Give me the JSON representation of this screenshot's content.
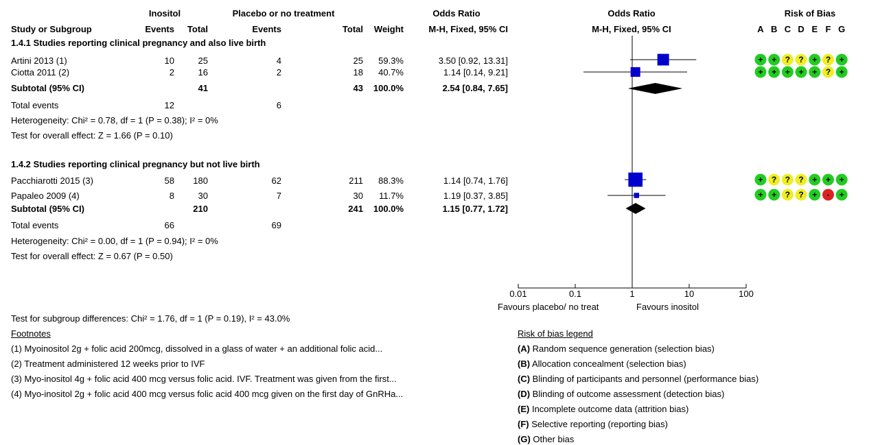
{
  "header": {
    "group1": "Inositol",
    "group2": "Placebo or no treatment",
    "or_top": "Odds Ratio",
    "or_plot_top": "Odds Ratio",
    "rob_top": "Risk of Bias",
    "study_col": "Study or Subgroup",
    "events1": "Events",
    "total1": "Total",
    "events2": "Events",
    "total2": "Total",
    "weight": "Weight",
    "method": "M-H, Fixed, 95% CI",
    "method_plot": "M-H, Fixed, 95% CI",
    "rob_letters": [
      "A",
      "B",
      "C",
      "D",
      "E",
      "F",
      "G"
    ]
  },
  "groups": [
    {
      "title": "1.4.1 Studies reporting clinical pregnancy and also live birth",
      "studies": [
        {
          "name": "Artini 2013 (1)",
          "e1": "10",
          "t1": "25",
          "e2": "4",
          "t2": "25",
          "weight": "59.3%",
          "or_text": "3.50 [0.92, 13.31]",
          "or": 3.5,
          "lo": 0.92,
          "hi": 13.31,
          "w": 59.3,
          "rob": [
            "+",
            "+",
            "?",
            "?",
            "+",
            "?",
            "+"
          ]
        },
        {
          "name": "Ciotta 2011 (2)",
          "e1": "2",
          "t1": "16",
          "e2": "2",
          "t2": "18",
          "weight": "40.7%",
          "or_text": "1.14 [0.14, 9.21]",
          "or": 1.14,
          "lo": 0.14,
          "hi": 9.21,
          "w": 40.7,
          "rob": [
            "+",
            "+",
            "+",
            "+",
            "+",
            "?",
            "+"
          ]
        }
      ],
      "subtotal": {
        "label": "Subtotal (95% CI)",
        "t1": "41",
        "t2": "43",
        "weight": "100.0%",
        "or_text": "2.54 [0.84, 7.65]",
        "or": 2.54,
        "lo": 0.84,
        "hi": 7.65
      },
      "total_events": {
        "label": "Total events",
        "e1": "12",
        "e2": "6"
      },
      "heterogeneity": "Heterogeneity: Chi² = 0.78, df = 1 (P = 0.38); I² = 0%",
      "overall": "Test for overall effect: Z = 1.66 (P = 0.10)"
    },
    {
      "title": "1.4.2 Studies reporting clinical pregnancy but not live birth",
      "studies": [
        {
          "name": "Pacchiarotti 2015 (3)",
          "e1": "58",
          "t1": "180",
          "e2": "62",
          "t2": "211",
          "weight": "88.3%",
          "or_text": "1.14 [0.74, 1.76]",
          "or": 1.14,
          "lo": 0.74,
          "hi": 1.76,
          "w": 88.3,
          "rob": [
            "+",
            "?",
            "?",
            "?",
            "+",
            "+",
            "+"
          ]
        },
        {
          "name": "Papaleo 2009 (4)",
          "e1": "8",
          "t1": "30",
          "e2": "7",
          "t2": "30",
          "weight": "11.7%",
          "or_text": "1.19 [0.37, 3.85]",
          "or": 1.19,
          "lo": 0.37,
          "hi": 3.85,
          "w": 11.7,
          "rob": [
            "+",
            "+",
            "?",
            "?",
            "+",
            "-",
            "+"
          ]
        }
      ],
      "subtotal": {
        "label": "Subtotal (95% CI)",
        "t1": "210",
        "t2": "241",
        "weight": "100.0%",
        "or_text": "1.15 [0.77, 1.72]",
        "or": 1.15,
        "lo": 0.77,
        "hi": 1.72
      },
      "total_events": {
        "label": "Total events",
        "e1": "66",
        "e2": "69"
      },
      "heterogeneity": "Heterogeneity: Chi² = 0.00, df = 1 (P = 0.94); I² = 0%",
      "overall": "Test for overall effect: Z = 0.67 (P = 0.50)"
    }
  ],
  "subgroup_test": "Test for subgroup differences: Chi² = 1.76, df = 1 (P = 0.19), I² = 43.0%",
  "favours_left": "Favours placebo/ no treat",
  "favours_right": "Favours inositol",
  "footnotes_title": "Footnotes",
  "footnotes": [
    "(1) Myoinositol 2g + folic acid 200mcg, dissolved in a glass of water + an additional folic acid...",
    "(2) Treatment administered 12 weeks prior to IVF",
    "(3) Myo-inositol 4g + folic acid 400 mcg versus folic acid. IVF. Treatment was given from the first...",
    "(4) Myo-inositol 2g + folic acid 400 mcg versus folic acid 400 mcg given on the first day of GnRHa..."
  ],
  "rob_legend_title": "Risk of bias legend",
  "rob_legend": [
    {
      "key": "(A)",
      "text": " Random sequence generation (selection bias)"
    },
    {
      "key": "(B)",
      "text": " Allocation concealment (selection bias)"
    },
    {
      "key": "(C)",
      "text": " Blinding of participants and personnel (performance bias)"
    },
    {
      "key": "(D)",
      "text": " Blinding of outcome assessment (detection bias)"
    },
    {
      "key": "(E)",
      "text": " Incomplete outcome data (attrition bias)"
    },
    {
      "key": "(F)",
      "text": " Selective reporting (reporting bias)"
    },
    {
      "key": "(G)",
      "text": " Other bias"
    }
  ],
  "colors": {
    "square": "#0000cc",
    "diamond": "#000000",
    "low": "#22cc22",
    "unclear": "#eeee22",
    "high": "#dd2222"
  },
  "chart_data": {
    "type": "scatter",
    "scale": "log",
    "xlim": [
      0.01,
      100
    ],
    "ticks": [
      0.01,
      0.1,
      1,
      10,
      100
    ],
    "tick_labels": [
      "0.01",
      "0.1",
      "1",
      "10",
      "100"
    ],
    "series": [
      {
        "name": "Artini 2013 (1)",
        "value": 3.5,
        "ci": [
          0.92,
          13.31
        ]
      },
      {
        "name": "Ciotta 2011 (2)",
        "value": 1.14,
        "ci": [
          0.14,
          9.21
        ]
      },
      {
        "name": "Subtotal (95% CI)",
        "value": 2.54,
        "ci": [
          0.84,
          7.65
        ]
      },
      {
        "name": "Pacchiarotti 2015 (3)",
        "value": 1.14,
        "ci": [
          0.74,
          1.76
        ]
      },
      {
        "name": "Papaleo 2009 (4)",
        "value": 1.19,
        "ci": [
          0.37,
          3.85
        ]
      },
      {
        "name": "Subtotal (95% CI)",
        "value": 1.15,
        "ci": [
          0.77,
          1.72
        ]
      }
    ]
  }
}
